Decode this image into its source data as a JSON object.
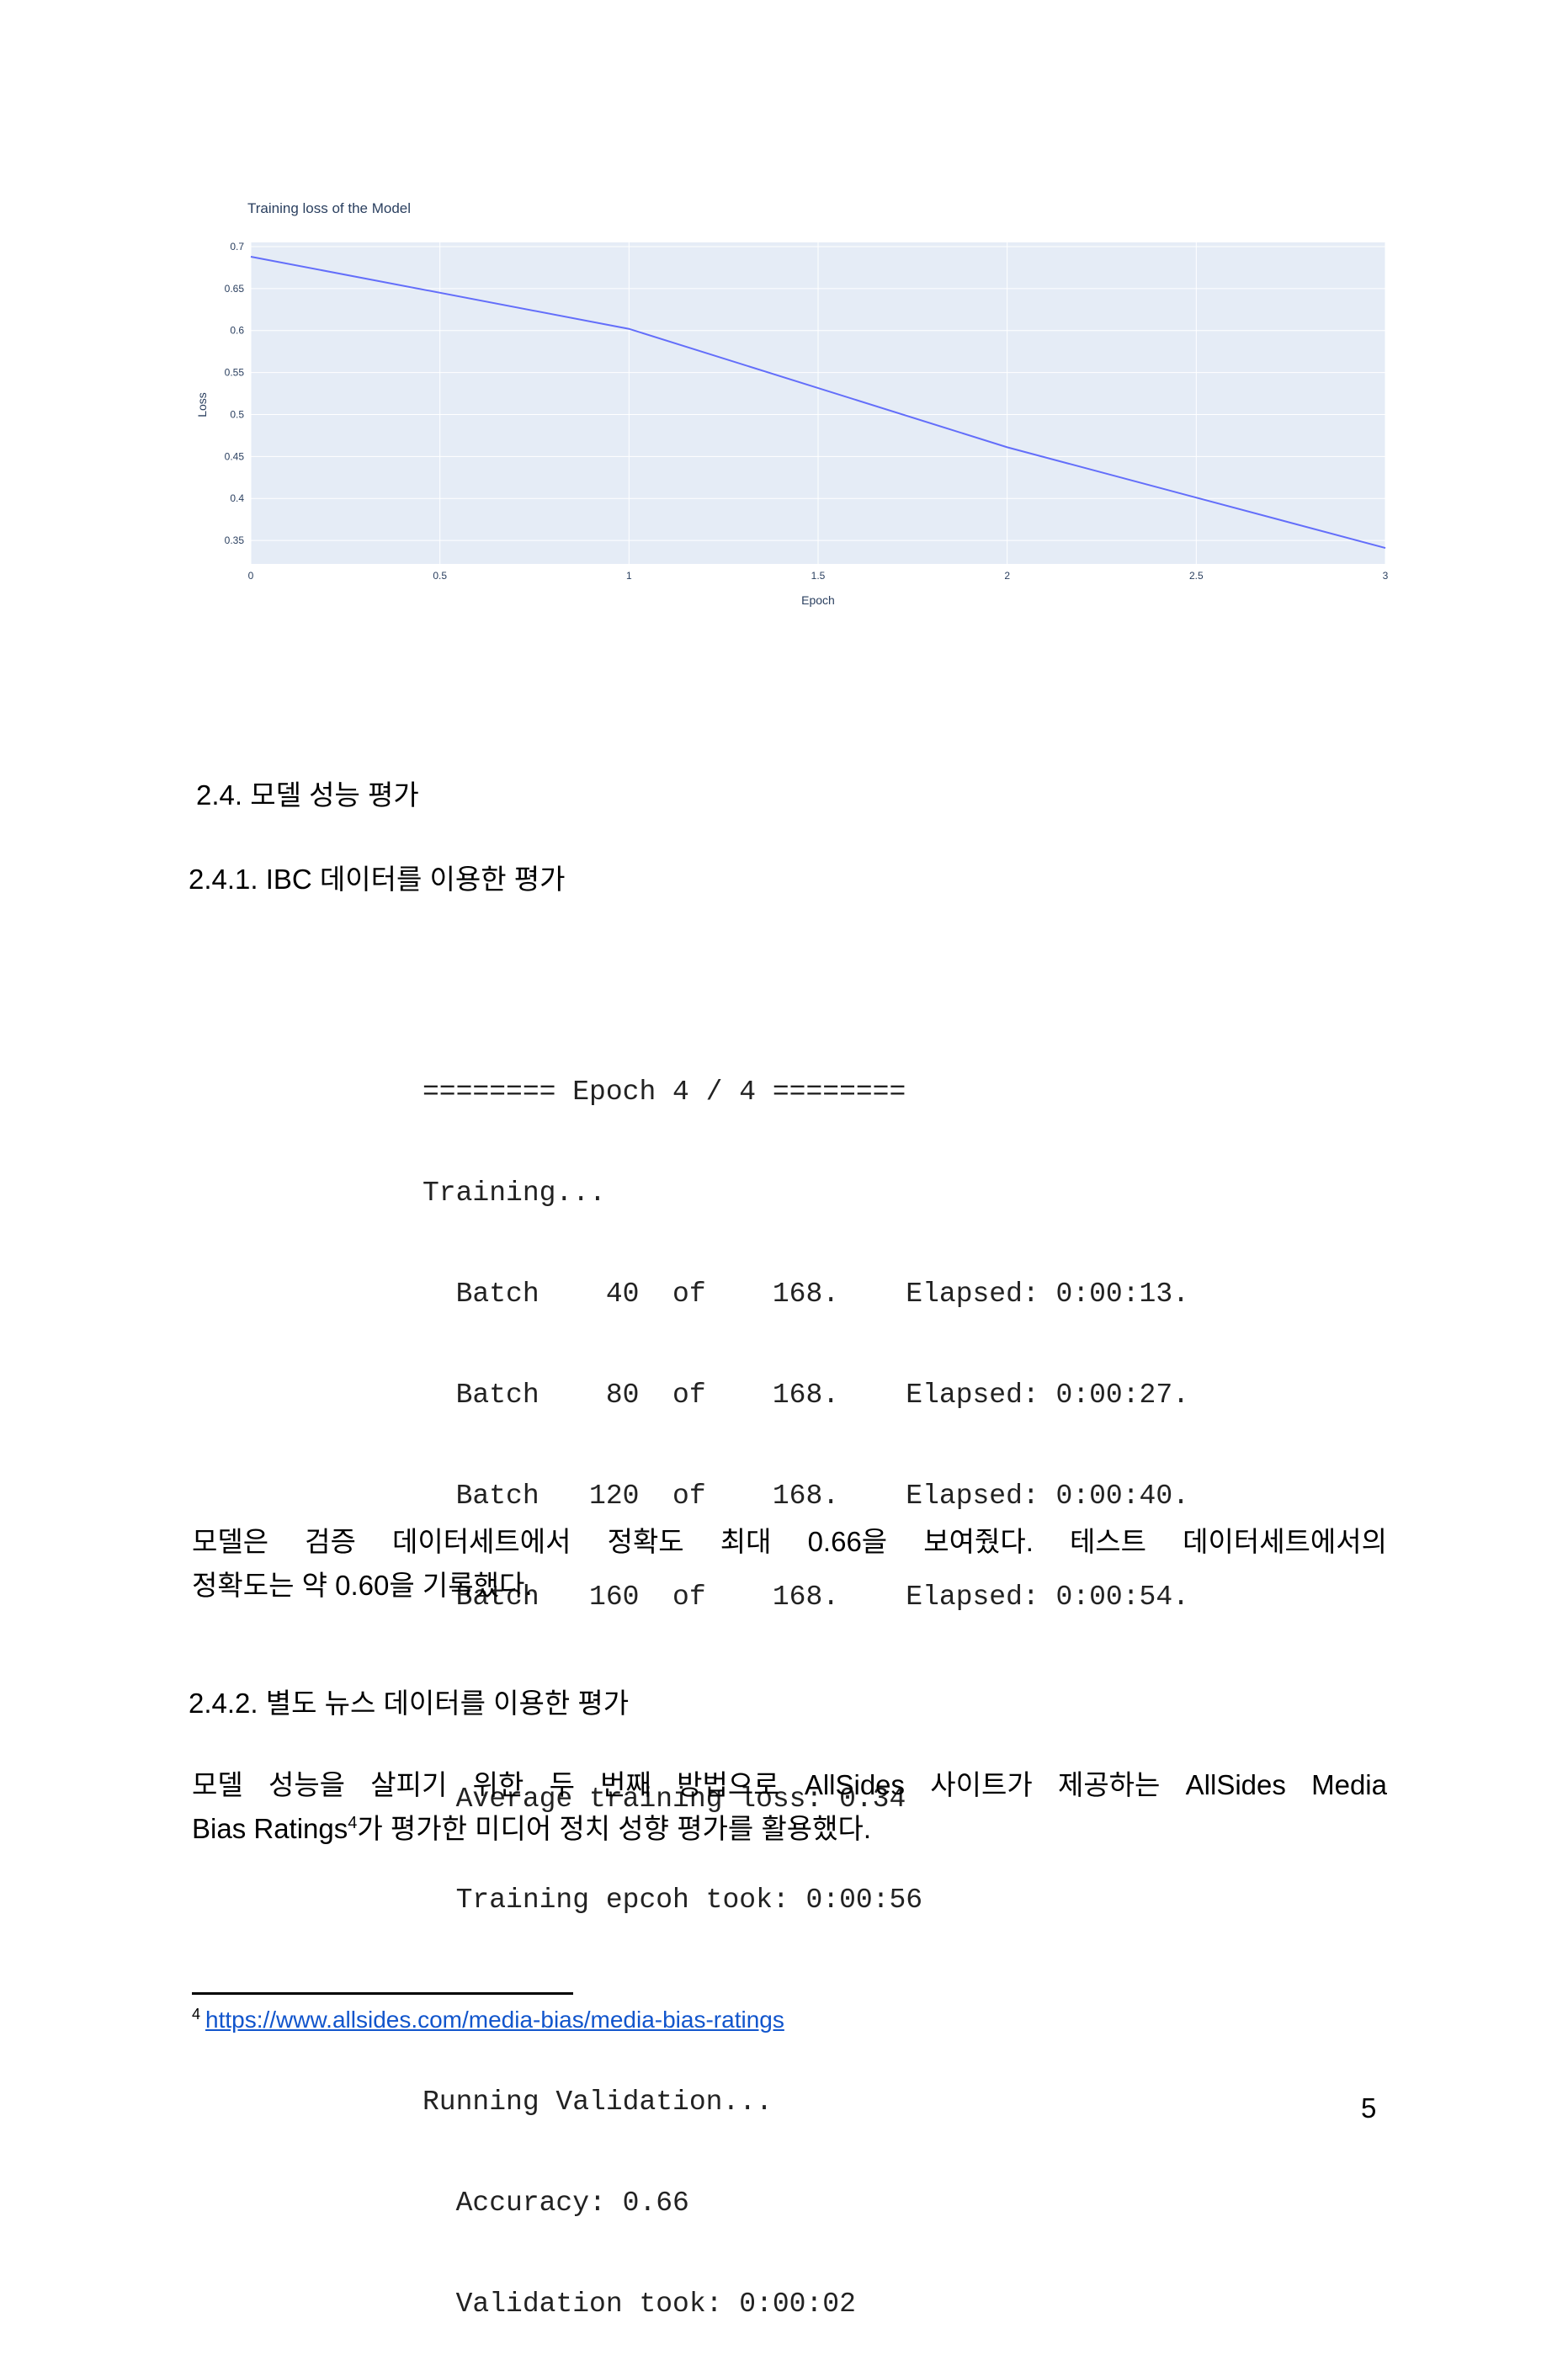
{
  "chart_data": {
    "type": "line",
    "title": "Training loss of the Model",
    "xlabel": "Epoch",
    "ylabel": "Loss",
    "xlim": [
      0,
      3
    ],
    "ylim": [
      0.322,
      0.705
    ],
    "x_ticks": [
      "0",
      "0.5",
      "1",
      "1.5",
      "2",
      "2.5",
      "3"
    ],
    "y_ticks": [
      "0.35",
      "0.4",
      "0.45",
      "0.5",
      "0.55",
      "0.6",
      "0.65",
      "0.7"
    ],
    "x": [
      0,
      1,
      2,
      3
    ],
    "values": [
      0.688,
      0.602,
      0.461,
      0.341
    ],
    "grid": true,
    "plot_background": "#e5ecf6",
    "line_color": "#636efa"
  },
  "section_2_4": {
    "heading": "2.4. 모델 성능 평가"
  },
  "section_2_4_1": {
    "heading": "2.4.1. IBC 데이터를 이용한 평가"
  },
  "console": {
    "epoch_header": "======== Epoch 4 / 4 ========",
    "training": "Training...",
    "batches": [
      "  Batch    40  of    168.    Elapsed: 0:00:13.",
      "  Batch    80  of    168.    Elapsed: 0:00:27.",
      "  Batch   120  of    168.    Elapsed: 0:00:40.",
      "  Batch   160  of    168.    Elapsed: 0:00:54."
    ],
    "avg_loss": "  Average training loss: 0.34",
    "epoch_time": "  Training epcoh took: 0:00:56",
    "validation": "Running Validation...",
    "accuracy": "  Accuracy: 0.66",
    "validation_time": "  Validation took: 0:00:02"
  },
  "paragraph_1": {
    "line1": "모델은 검증 데이터세트에서 정확도 최대 0.66을 보여줬다. 테스트 데이터세트에서의",
    "line2": "정확도는 약 0.60을 기록했다."
  },
  "section_2_4_2": {
    "heading": "2.4.2. 별도 뉴스 데이터를 이용한 평가"
  },
  "paragraph_2": {
    "line1": "모델 성능을 살피기 위한 두 번째 방법으로 AllSides 사이트가 제공하는 AllSides Media",
    "line2_a": "Bias Ratings",
    "footnote_ref": "4",
    "line2_b": "가 평가한 미디어 정치 성향 평가를 활용했다."
  },
  "footnote": {
    "number": "4",
    "url": "https://www.allsides.com/media-bias/media-bias-ratings"
  },
  "page_number": "5"
}
